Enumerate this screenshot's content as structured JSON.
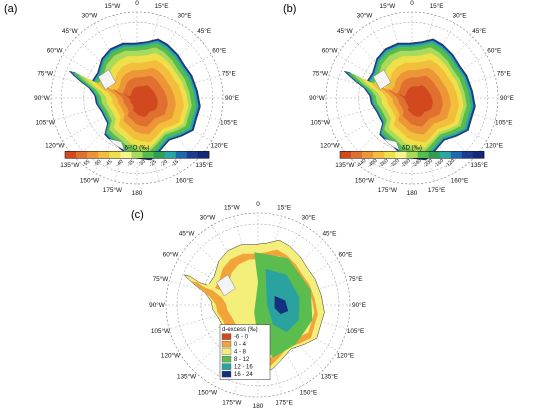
{
  "panels": [
    {
      "letter": "(a)",
      "colorbar_title": "δ¹⁸O (‰)",
      "colorbar_ticks": [
        "-55",
        "-50",
        "-45",
        "-40",
        "-35",
        "-30",
        "-25",
        "-20",
        "-15"
      ],
      "colorbar_colors": [
        "#d2491f",
        "#e07030",
        "#ec9638",
        "#f2be3c",
        "#efe04a",
        "#f8f48c",
        "#a9da5c",
        "#57bc4b",
        "#2c9f55",
        "#28a7a6",
        "#1f6aae",
        "#1b3c91",
        "#142a78"
      ],
      "labels": {
        "top": "0",
        "lon_w": [
          "15°W",
          "30°W",
          "45°W",
          "60°W",
          "75°W",
          "90°W",
          "105°W",
          "120°W",
          "135°W",
          "150°W",
          "175°W"
        ],
        "lon_e": [
          "15°E",
          "30°E",
          "45°E",
          "60°E",
          "75°E",
          "90°E",
          "105°E",
          "120°E",
          "135°E",
          "160°E"
        ],
        "bottom": "180"
      }
    },
    {
      "letter": "(b)",
      "colorbar_title": "δD (‰)",
      "colorbar_ticks": [
        "-440",
        "-400",
        "-360",
        "-320",
        "-280",
        "-240",
        "-200",
        "-160",
        "-120"
      ],
      "colorbar_colors": [
        "#d2491f",
        "#e07030",
        "#ec9638",
        "#f2be3c",
        "#efe04a",
        "#f8f48c",
        "#a9da5c",
        "#57bc4b",
        "#2c9f55",
        "#28a7a6",
        "#1f6aae",
        "#1b3c91",
        "#142a78"
      ],
      "labels": {
        "top": "0",
        "lon_w": [
          "15°W",
          "30°W",
          "45°W",
          "60°W",
          "75°W",
          "90°W",
          "105°W",
          "120°W",
          "135°W",
          "150°W",
          "175°W"
        ],
        "lon_e": [
          "15°E",
          "30°E",
          "45°E",
          "60°E",
          "75°E",
          "90°E",
          "105°E",
          "120°E",
          "135°E",
          "160°E",
          "175°E"
        ],
        "bottom": "180"
      }
    },
    {
      "letter": "(c)",
      "legend_title": "d-excess (‰)",
      "legend_items": [
        {
          "label": "-6 - 0",
          "color": "#d2491f"
        },
        {
          "label": "0 - 4",
          "color": "#f1a43a"
        },
        {
          "label": "4 - 8",
          "color": "#f4ee7a"
        },
        {
          "label": "8 - 12",
          "color": "#5cbd4f"
        },
        {
          "label": "12 - 16",
          "color": "#2aa3a0"
        },
        {
          "label": "16 - 24",
          "color": "#14307f"
        }
      ],
      "labels": {
        "top": "0",
        "lon_w": [
          "15°W",
          "30°W",
          "45°W",
          "60°W",
          "75°W",
          "90°W",
          "105°W",
          "120°W",
          "135°W",
          "150°W",
          "175°W"
        ],
        "lon_e": [
          "15°E",
          "30°E",
          "45°E",
          "60°E",
          "75°E",
          "90°E",
          "105°E",
          "120°E",
          "135°E",
          "150°E",
          "175°E"
        ],
        "bottom": "180"
      }
    }
  ]
}
